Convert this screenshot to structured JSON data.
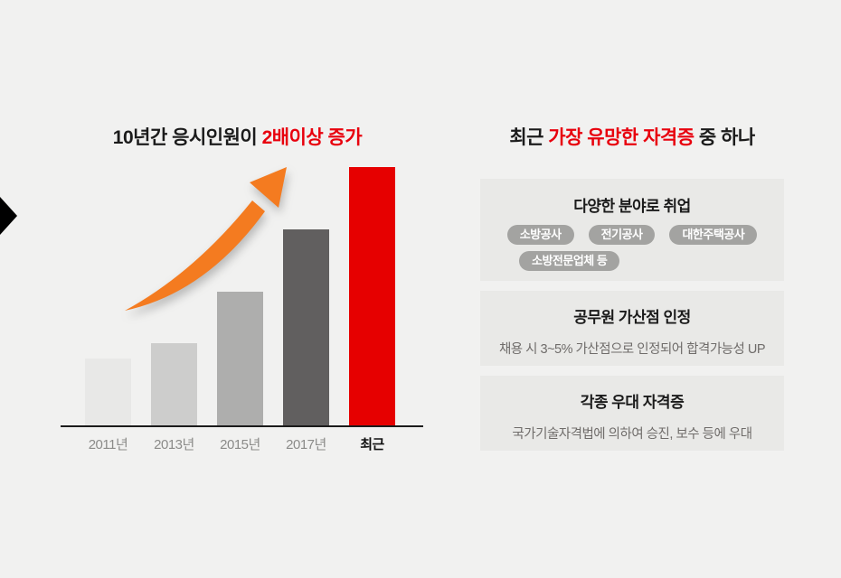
{
  "page": {
    "background": "#f1f1f0"
  },
  "icons": {
    "carousel_arrow": "right-pointing black triangle at left edge",
    "growth_arrow": "orange curved swoosh arrow pointing up-right over the bars"
  },
  "left_panel": {
    "title": {
      "prefix": "10년간 응시인원이 ",
      "highlight": "2배이상 증가"
    }
  },
  "chart_data": {
    "type": "bar",
    "title": "10년간 응시인원이 2배이상 증가",
    "xlabel": "",
    "ylabel": "",
    "categories": [
      "2011년",
      "2013년",
      "2015년",
      "2017년",
      "최근"
    ],
    "values": [
      26,
      32,
      52,
      76,
      100
    ],
    "values_note": "no numeric axis shown; values are relative bar heights with 최근 = 100",
    "ylim": [
      0,
      100
    ],
    "grid": false,
    "legend": false,
    "bar_colors": [
      "#e8e8e7",
      "#cdcdcc",
      "#aeaead",
      "#615f5f",
      "#e60000"
    ],
    "highlight_category": "최근",
    "axis_color": "#1b1b1b",
    "annotations": [
      "orange growth swoosh arrow rising over bars 2011년→2017년"
    ]
  },
  "right_panel": {
    "title": {
      "prefix": "최근 ",
      "highlight": "가장 유망한 자격증",
      "suffix": " 중 하나"
    },
    "cards": [
      {
        "title": "다양한 분야로 취업",
        "tag_rows": [
          [
            "소방공사",
            "전기공사",
            "대한주택공사"
          ],
          [
            "소방전문업체 등"
          ]
        ]
      },
      {
        "title": "공무원 가산점 인정",
        "description": "채용 시 3~5% 가산점으로 인정되어 합격가능성 UP"
      },
      {
        "title": "각종 우대 자격증",
        "description": "국가기술자격법에 의하여 승진, 보수 등에 우대"
      }
    ]
  },
  "colors": {
    "accent_red_text": "#e8000d",
    "bar_red": "#e60000",
    "arrow_orange": "#f47b20",
    "card_background": "#e9e9e7",
    "pill_background": "#a3a3a1",
    "pill_text": "#ffffff",
    "muted_text": "#6f6c6a",
    "axis_label_gray": "#8b8b89"
  }
}
